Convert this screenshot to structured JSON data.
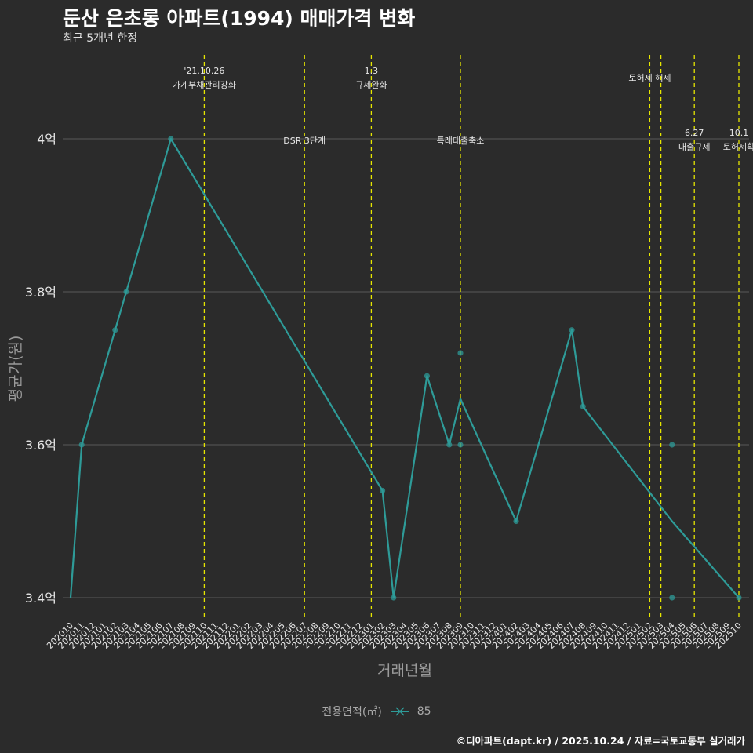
{
  "header": {
    "title": "둔산 은초롱 아파트(1994) 매매가격 변화",
    "subtitle": "최근 5개년 한정"
  },
  "caption": "©디아파트(dapt.kr) / 2025.10.24 / 자료=국토교통부 실거래가",
  "legend": {
    "title": "전용면적(㎡)",
    "item": "85",
    "color": "#2e9b98"
  },
  "colors": {
    "line": "#2e9b98",
    "event": "#e6e600",
    "grid": "#5a5a5a",
    "text": "#e6e6e6"
  },
  "chart_data": {
    "type": "line",
    "xlabel": "거래년월",
    "ylabel": "평균가(원)",
    "ylim": [
      3.38,
      4.1
    ],
    "yticks": [
      3.4,
      3.6,
      3.8,
      4.0
    ],
    "ytick_labels": [
      "3.4억",
      "3.6억",
      "3.8억",
      "4억"
    ],
    "categories": [
      "202010",
      "202011",
      "202012",
      "202101",
      "202102",
      "202103",
      "202104",
      "202105",
      "202106",
      "202107",
      "202108",
      "202109",
      "202110",
      "202111",
      "202112",
      "202201",
      "202202",
      "202203",
      "202204",
      "202205",
      "202206",
      "202207",
      "202208",
      "202209",
      "202210",
      "202211",
      "202212",
      "202301",
      "202302",
      "202303",
      "202304",
      "202305",
      "202306",
      "202307",
      "202308",
      "202309",
      "202310",
      "202311",
      "202312",
      "202401",
      "202402",
      "202403",
      "202404",
      "202405",
      "202406",
      "202407",
      "202408",
      "202409",
      "202410",
      "202411",
      "202412",
      "202501",
      "202502",
      "202503",
      "202504",
      "202505",
      "202506",
      "202507",
      "202508",
      "202509",
      "202510"
    ],
    "series": [
      {
        "name": "85",
        "line": [
          {
            "x": "202010",
            "y": 3.4
          },
          {
            "x": "202011",
            "y": 3.6
          },
          {
            "x": "202102",
            "y": 3.75
          },
          {
            "x": "202103",
            "y": 3.8
          },
          {
            "x": "202107",
            "y": 4.0
          },
          {
            "x": "202302",
            "y": 3.54
          },
          {
            "x": "202303",
            "y": 3.4
          },
          {
            "x": "202306",
            "y": 3.69
          },
          {
            "x": "202308",
            "y": 3.6
          },
          {
            "x": "202309",
            "y": 3.66
          },
          {
            "x": "202402",
            "y": 3.5
          },
          {
            "x": "202407",
            "y": 3.75
          },
          {
            "x": "202408",
            "y": 3.65
          },
          {
            "x": "202504",
            "y": 3.5
          },
          {
            "x": "202510",
            "y": 3.4
          }
        ],
        "points": [
          {
            "x": "202011",
            "y": 3.6
          },
          {
            "x": "202102",
            "y": 3.75
          },
          {
            "x": "202103",
            "y": 3.8
          },
          {
            "x": "202107",
            "y": 4.0
          },
          {
            "x": "202302",
            "y": 3.54
          },
          {
            "x": "202303",
            "y": 3.4
          },
          {
            "x": "202306",
            "y": 3.69
          },
          {
            "x": "202308",
            "y": 3.6
          },
          {
            "x": "202309",
            "y": 3.72
          },
          {
            "x": "202309",
            "y": 3.6
          },
          {
            "x": "202402",
            "y": 3.5
          },
          {
            "x": "202407",
            "y": 3.75
          },
          {
            "x": "202408",
            "y": 3.65
          },
          {
            "x": "202504",
            "y": 3.6
          },
          {
            "x": "202504",
            "y": 3.4
          },
          {
            "x": "202510",
            "y": 3.4
          }
        ]
      }
    ],
    "events": [
      {
        "x": "202110",
        "date": "'21.10.26",
        "label": "가계부채관리강화",
        "level": "top"
      },
      {
        "x": "202207",
        "date": "",
        "label": "DSR 3단계",
        "level": "mid"
      },
      {
        "x": "202301",
        "date": "1.3",
        "label": "규제완화",
        "level": "top"
      },
      {
        "x": "202309",
        "date": "",
        "label": "특례대출축소",
        "level": "mid"
      },
      {
        "x": "202502",
        "date": "",
        "label": "토허제 해제",
        "level": "top"
      },
      {
        "x": "202503",
        "date": "",
        "label": "",
        "level": "none"
      },
      {
        "x": "202506",
        "date": "6.27",
        "label": "대출규제",
        "level": "low"
      },
      {
        "x": "202510",
        "date": "10.1",
        "label": "토허제확",
        "level": "low"
      }
    ]
  }
}
